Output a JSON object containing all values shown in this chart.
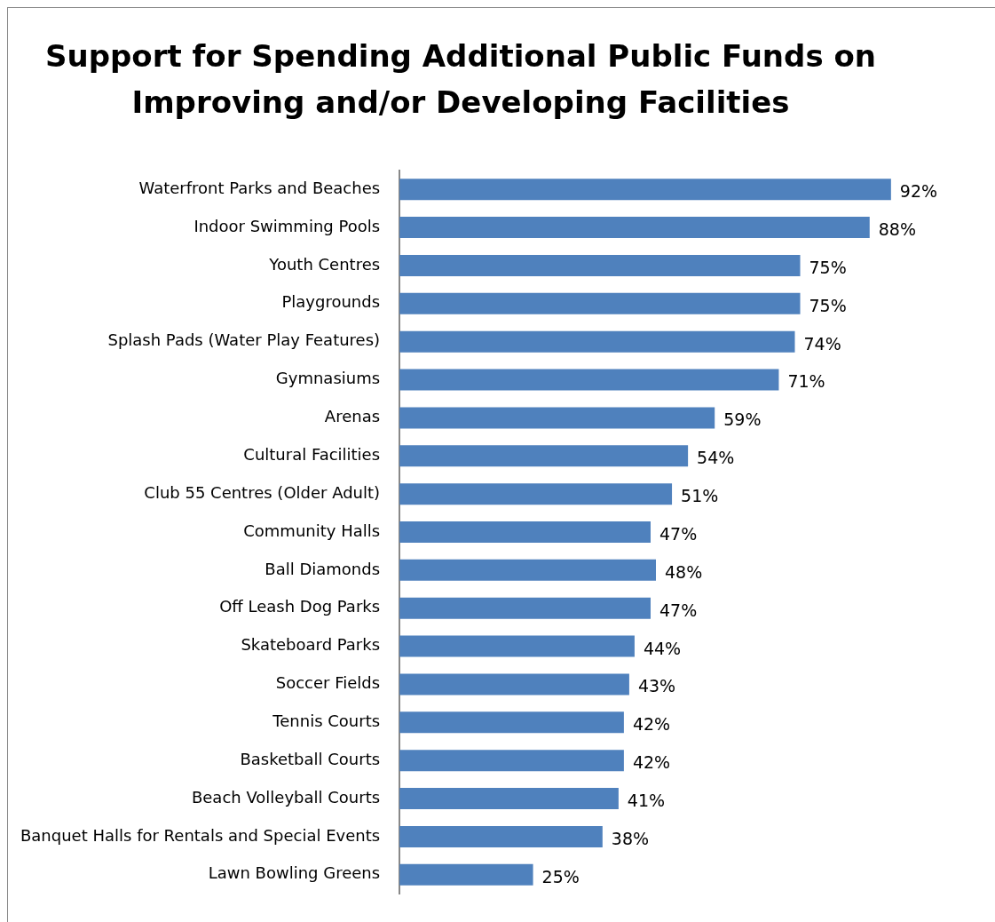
{
  "chart_data": {
    "type": "bar",
    "orientation": "horizontal",
    "title": "Support for Spending Additional Public Funds on Improving and/or Developing Facilities",
    "categories": [
      "Waterfront Parks and Beaches",
      "Indoor Swimming Pools",
      "Youth Centres",
      "Playgrounds",
      "Splash Pads (Water Play Features)",
      "Gymnasiums",
      "Arenas",
      "Cultural Facilities",
      "Club 55 Centres (Older Adult)",
      "Community Halls",
      "Ball Diamonds",
      "Off Leash Dog Parks",
      "Skateboard Parks",
      "Soccer Fields",
      "Tennis Courts",
      "Basketball Courts",
      "Beach Volleyball Courts",
      "Banquet Halls for Rentals and Special Events",
      "Lawn Bowling Greens"
    ],
    "values": [
      92,
      88,
      75,
      75,
      74,
      71,
      59,
      54,
      51,
      47,
      48,
      47,
      44,
      43,
      42,
      42,
      41,
      38,
      25
    ],
    "value_labels": [
      "92%",
      "88%",
      "75%",
      "75%",
      "74%",
      "71%",
      "59%",
      "54%",
      "51%",
      "47%",
      "48%",
      "47%",
      "44%",
      "43%",
      "42%",
      "42%",
      "41%",
      "38%",
      "25%"
    ],
    "color": "#4f81bd",
    "tick_labels": "y",
    "grid": false,
    "legend": false
  }
}
